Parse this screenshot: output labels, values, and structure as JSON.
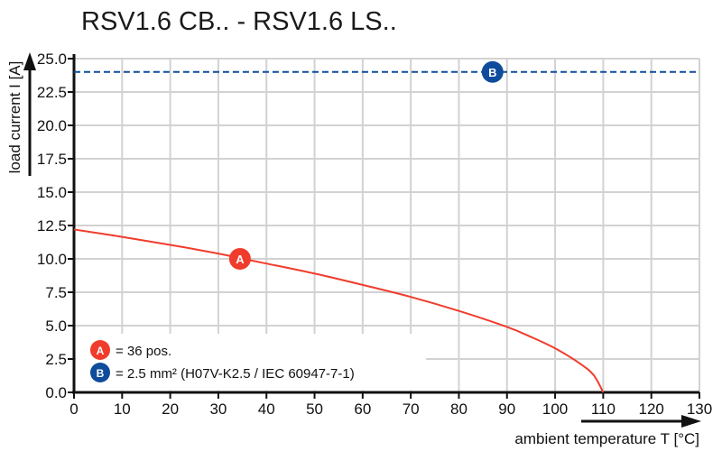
{
  "chart_data": {
    "type": "line",
    "title": "RSV1.6 CB.. - RSV1.6 LS..",
    "xlabel": "ambient temperature T [°C]",
    "ylabel": "load current I [A]",
    "xlim": [
      0,
      130
    ],
    "ylim": [
      0,
      25
    ],
    "xticks": [
      "0",
      "10",
      "20",
      "30",
      "40",
      "50",
      "60",
      "70",
      "80",
      "90",
      "100",
      "110",
      "120",
      "130"
    ],
    "yticks": [
      "0.0",
      "2.5",
      "5.0",
      "7.5",
      "10.0",
      "12.5",
      "15.0",
      "17.5",
      "20.0",
      "22.5",
      "25.0"
    ],
    "grid": true,
    "series": [
      {
        "marker": "A",
        "color": "#f03c2d",
        "style": "solid",
        "x": [
          0,
          10,
          20,
          30,
          34.5,
          40,
          50,
          60,
          70,
          80,
          90,
          95,
          100,
          105,
          108,
          110
        ],
        "y": [
          12.2,
          11.65,
          11.05,
          10.4,
          10.05,
          9.65,
          8.9,
          8.05,
          7.15,
          6.1,
          4.9,
          4.15,
          3.3,
          2.2,
          1.3,
          0
        ],
        "marker_at": [
          34.5,
          10
        ]
      },
      {
        "marker": "B",
        "color": "#0f4c9b",
        "style": "dashed",
        "x": [
          0,
          130
        ],
        "y": [
          24,
          24
        ],
        "marker_at": [
          87,
          24
        ]
      }
    ],
    "legend": {
      "placement": "bottom-left",
      "entries": [
        {
          "marker": "A",
          "text": "= 36 pos.",
          "color": "#f03c2d"
        },
        {
          "marker": "B",
          "text": "= 2.5 mm² (H07V-K2.5 / IEC 60947-7-1)",
          "color": "#0f4c9b"
        }
      ]
    }
  }
}
